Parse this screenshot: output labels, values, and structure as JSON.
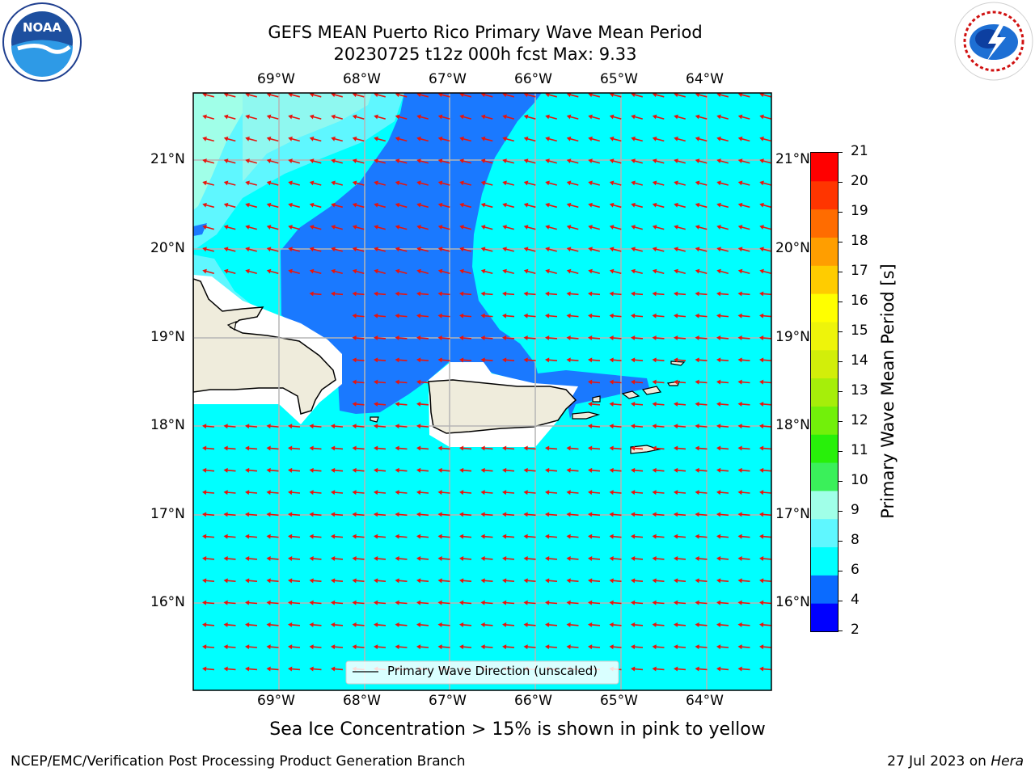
{
  "header": {
    "title_line1": "GEFS MEAN Puerto Rico Primary Wave Mean Period",
    "title_line2": "20230725 t12z 000h fcst   Max: 9.33"
  },
  "logos": {
    "left": {
      "name": "noaa-logo",
      "text": "NOAA"
    },
    "right": {
      "name": "nws-logo"
    }
  },
  "map": {
    "lon_labels": [
      "69°W",
      "68°W",
      "67°W",
      "66°W",
      "65°W",
      "64°W"
    ],
    "lat_labels": [
      "21°N",
      "20°N",
      "19°N",
      "18°N",
      "17°N",
      "16°N"
    ],
    "legend_label": "Primary Wave Direction (unscaled)",
    "colors": {
      "land": "#efecdc",
      "cyan": "#00ffff",
      "blue": "#1a79ff",
      "light_cyan": "#5ff7ff",
      "aqua_mint": "#a0ffe8",
      "arrow": "#e8140c",
      "grid": "#b5b5b5"
    }
  },
  "colorbar": {
    "label": "Primary Wave Mean Period [s]",
    "ticks": [
      "2",
      "4",
      "6",
      "8",
      "9",
      "10",
      "11",
      "12",
      "13",
      "14",
      "15",
      "16",
      "17",
      "18",
      "19",
      "20",
      "21"
    ],
    "colors": [
      "#0000ff",
      "#0a6bff",
      "#00ffff",
      "#5ff7ff",
      "#a0ffe8",
      "#3af05a",
      "#28f00a",
      "#72f00a",
      "#a6ee0a",
      "#d2ee0a",
      "#eef40a",
      "#ffff00",
      "#ffcc00",
      "#ff9e00",
      "#ff6c00",
      "#ff3500",
      "#ff0000"
    ]
  },
  "subtitle": "Sea Ice Concentration > 15% is shown in pink to yellow",
  "footer": {
    "left": "NCEP/EMC/Verification Post Processing Product Generation Branch",
    "right_date": "27 Jul 2023 on ",
    "right_host": "Hera"
  }
}
